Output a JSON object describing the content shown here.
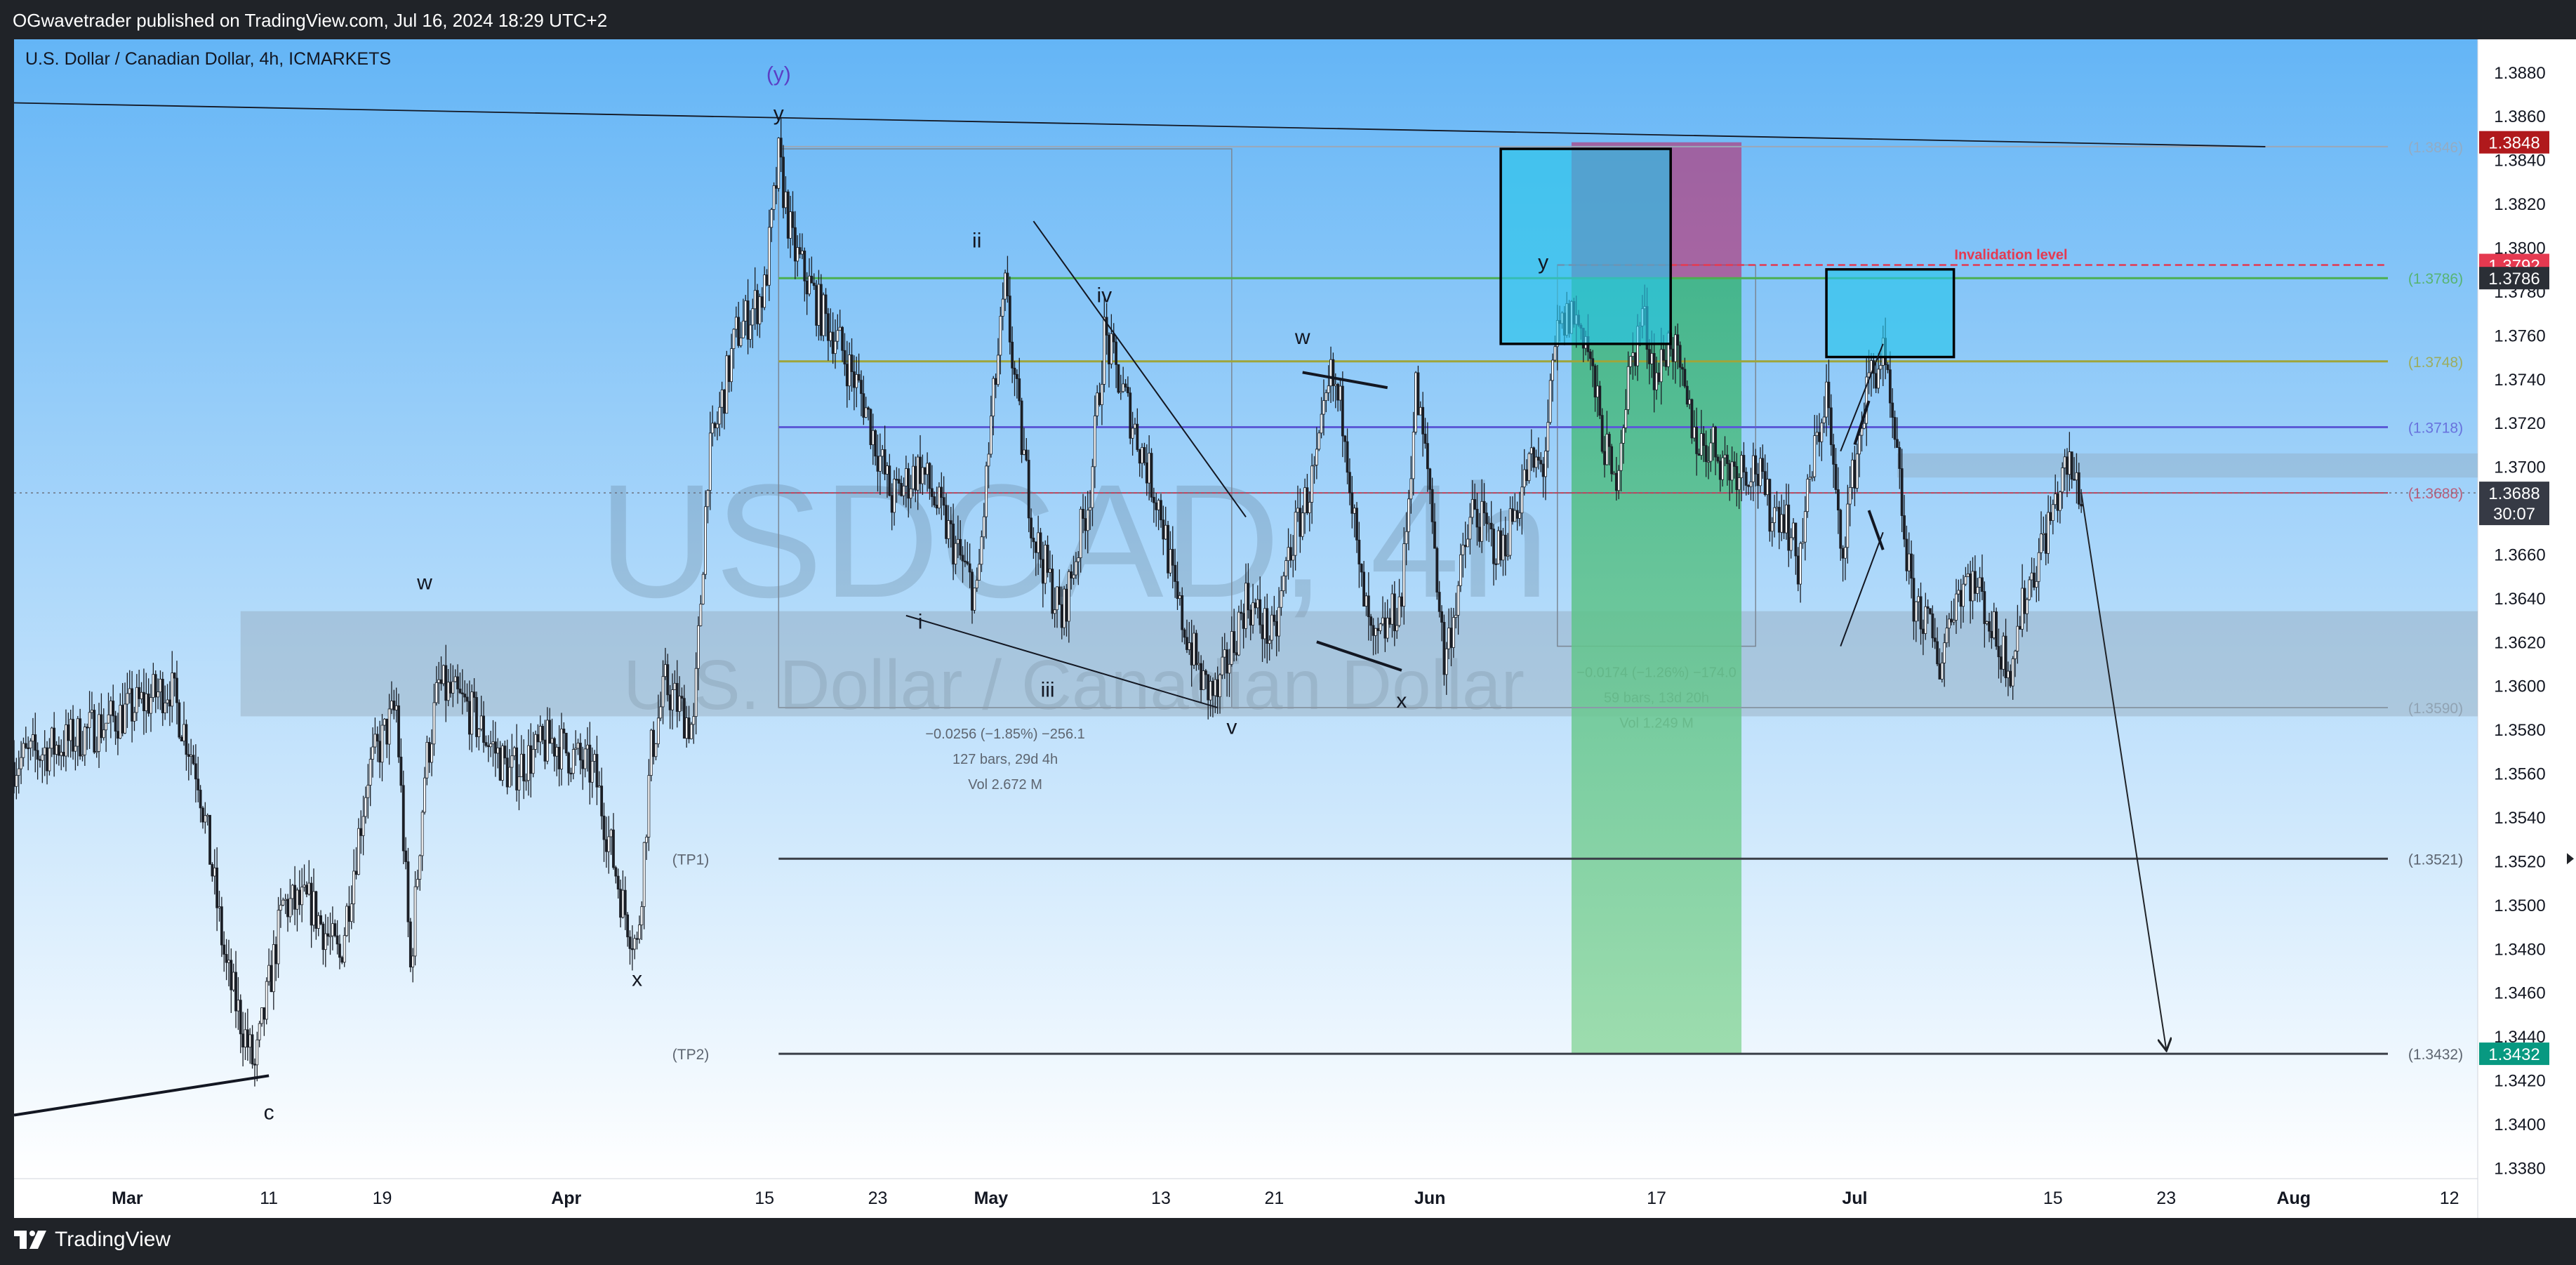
{
  "header": {
    "published_line": "OGwavetrader published on TradingView.com, Jul 16, 2024 18:29 UTC+2"
  },
  "footer": {
    "brand": "TradingView"
  },
  "chart_data": {
    "type": "candlestick",
    "symbol_title": "U.S. Dollar / Canadian Dollar, 4h, ICMARKETS",
    "watermark": {
      "ticker": "USDCAD, 4h",
      "name": "U.S. Dollar / Canadian Dollar"
    },
    "ylim": [
      1.3375,
      1.3895
    ],
    "y_ticks": [
      1.338,
      1.34,
      1.342,
      1.344,
      1.346,
      1.348,
      1.35,
      1.352,
      1.354,
      1.356,
      1.358,
      1.36,
      1.362,
      1.364,
      1.366,
      1.368,
      1.37,
      1.372,
      1.374,
      1.376,
      1.378,
      1.38,
      1.382,
      1.384,
      1.386,
      1.388
    ],
    "x_ticks": [
      {
        "label": "Mar",
        "date": "2024-03-01",
        "bold": true
      },
      {
        "label": "11",
        "date": "2024-03-11",
        "bold": false
      },
      {
        "label": "19",
        "date": "2024-03-19",
        "bold": false
      },
      {
        "label": "Apr",
        "date": "2024-04-01",
        "bold": true
      },
      {
        "label": "15",
        "date": "2024-04-15",
        "bold": false
      },
      {
        "label": "23",
        "date": "2024-04-23",
        "bold": false
      },
      {
        "label": "May",
        "date": "2024-05-01",
        "bold": true
      },
      {
        "label": "13",
        "date": "2024-05-13",
        "bold": false
      },
      {
        "label": "21",
        "date": "2024-05-21",
        "bold": false
      },
      {
        "label": "Jun",
        "date": "2024-06-01",
        "bold": true
      },
      {
        "label": "17",
        "date": "2024-06-17",
        "bold": false
      },
      {
        "label": "Jul",
        "date": "2024-07-01",
        "bold": true
      },
      {
        "label": "15",
        "date": "2024-07-15",
        "bold": false
      },
      {
        "label": "23",
        "date": "2024-07-23",
        "bold": false
      },
      {
        "label": "Aug",
        "date": "2024-08-01",
        "bold": true
      },
      {
        "label": "12",
        "date": "2024-08-12",
        "bold": false
      }
    ],
    "x_range": [
      "2024-02-22",
      "2024-08-14"
    ],
    "price_path": [
      {
        "date": "2024-02-22",
        "price": 1.3565
      },
      {
        "date": "2024-02-26",
        "price": 1.3575
      },
      {
        "date": "2024-03-01",
        "price": 1.3588
      },
      {
        "date": "2024-03-04",
        "price": 1.36
      },
      {
        "date": "2024-03-06",
        "price": 1.356
      },
      {
        "date": "2024-03-08",
        "price": 1.347
      },
      {
        "date": "2024-03-10",
        "price": 1.3425
      },
      {
        "date": "2024-03-12",
        "price": 1.35
      },
      {
        "date": "2024-03-14",
        "price": 1.35
      },
      {
        "date": "2024-03-16",
        "price": 1.3475
      },
      {
        "date": "2024-03-18",
        "price": 1.356
      },
      {
        "date": "2024-03-20",
        "price": 1.359
      },
      {
        "date": "2024-03-21",
        "price": 1.347
      },
      {
        "date": "2024-03-22",
        "price": 1.356
      },
      {
        "date": "2024-03-23",
        "price": 1.36
      },
      {
        "date": "2024-03-25",
        "price": 1.359
      },
      {
        "date": "2024-03-28",
        "price": 1.356
      },
      {
        "date": "2024-03-31",
        "price": 1.3575
      },
      {
        "date": "2024-04-03",
        "price": 1.356
      },
      {
        "date": "2024-04-05",
        "price": 1.35
      },
      {
        "date": "2024-04-06",
        "price": 1.348
      },
      {
        "date": "2024-04-07",
        "price": 1.357
      },
      {
        "date": "2024-04-08",
        "price": 1.36
      },
      {
        "date": "2024-04-10",
        "price": 1.358
      },
      {
        "date": "2024-04-11",
        "price": 1.37
      },
      {
        "date": "2024-04-13",
        "price": 1.376
      },
      {
        "date": "2024-04-15",
        "price": 1.378
      },
      {
        "date": "2024-04-16",
        "price": 1.384
      },
      {
        "date": "2024-04-17",
        "price": 1.38
      },
      {
        "date": "2024-04-19",
        "price": 1.377
      },
      {
        "date": "2024-04-20",
        "price": 1.376
      },
      {
        "date": "2024-04-22",
        "price": 1.373
      },
      {
        "date": "2024-04-24",
        "price": 1.3685
      },
      {
        "date": "2024-04-26",
        "price": 1.37
      },
      {
        "date": "2024-04-28",
        "price": 1.367
      },
      {
        "date": "2024-04-30",
        "price": 1.364
      },
      {
        "date": "2024-05-01",
        "price": 1.372
      },
      {
        "date": "2024-05-02",
        "price": 1.378
      },
      {
        "date": "2024-05-03",
        "price": 1.372
      },
      {
        "date": "2024-05-04",
        "price": 1.367
      },
      {
        "date": "2024-05-06",
        "price": 1.363
      },
      {
        "date": "2024-05-08",
        "price": 1.369
      },
      {
        "date": "2024-05-09",
        "price": 1.376
      },
      {
        "date": "2024-05-11",
        "price": 1.372
      },
      {
        "date": "2024-05-13",
        "price": 1.368
      },
      {
        "date": "2024-05-14",
        "price": 1.364
      },
      {
        "date": "2024-05-16",
        "price": 1.36
      },
      {
        "date": "2024-05-17",
        "price": 1.3595
      },
      {
        "date": "2024-05-19",
        "price": 1.364
      },
      {
        "date": "2024-05-21",
        "price": 1.362
      },
      {
        "date": "2024-05-22",
        "price": 1.366
      },
      {
        "date": "2024-05-24",
        "price": 1.37
      },
      {
        "date": "2024-05-25",
        "price": 1.374
      },
      {
        "date": "2024-05-26",
        "price": 1.372
      },
      {
        "date": "2024-05-27",
        "price": 1.365
      },
      {
        "date": "2024-05-28",
        "price": 1.3615
      },
      {
        "date": "2024-05-30",
        "price": 1.364
      },
      {
        "date": "2024-05-31",
        "price": 1.3735
      },
      {
        "date": "2024-06-01",
        "price": 1.369
      },
      {
        "date": "2024-06-02",
        "price": 1.361
      },
      {
        "date": "2024-06-04",
        "price": 1.368
      },
      {
        "date": "2024-06-06",
        "price": 1.366
      },
      {
        "date": "2024-06-08",
        "price": 1.37
      },
      {
        "date": "2024-06-09",
        "price": 1.37
      },
      {
        "date": "2024-06-10",
        "price": 1.376
      },
      {
        "date": "2024-06-11",
        "price": 1.377
      },
      {
        "date": "2024-06-12",
        "price": 1.376
      },
      {
        "date": "2024-06-13",
        "price": 1.372
      },
      {
        "date": "2024-06-14",
        "price": 1.369
      },
      {
        "date": "2024-06-15",
        "price": 1.374
      },
      {
        "date": "2024-06-16",
        "price": 1.377
      },
      {
        "date": "2024-06-17",
        "price": 1.374
      },
      {
        "date": "2024-06-18",
        "price": 1.376
      },
      {
        "date": "2024-06-19",
        "price": 1.373
      },
      {
        "date": "2024-06-20",
        "price": 1.371
      },
      {
        "date": "2024-06-21",
        "price": 1.371
      },
      {
        "date": "2024-06-22",
        "price": 1.37
      },
      {
        "date": "2024-06-24",
        "price": 1.37
      },
      {
        "date": "2024-06-25",
        "price": 1.368
      },
      {
        "date": "2024-06-26",
        "price": 1.368
      },
      {
        "date": "2024-06-27",
        "price": 1.3655
      },
      {
        "date": "2024-06-28",
        "price": 1.37
      },
      {
        "date": "2024-06-29",
        "price": 1.3735
      },
      {
        "date": "2024-06-30",
        "price": 1.366
      },
      {
        "date": "2024-07-01",
        "price": 1.37
      },
      {
        "date": "2024-07-02",
        "price": 1.374
      },
      {
        "date": "2024-07-03",
        "price": 1.375
      },
      {
        "date": "2024-07-04",
        "price": 1.37
      },
      {
        "date": "2024-07-05",
        "price": 1.364
      },
      {
        "date": "2024-07-06",
        "price": 1.363
      },
      {
        "date": "2024-07-07",
        "price": 1.361
      },
      {
        "date": "2024-07-08",
        "price": 1.364
      },
      {
        "date": "2024-07-09",
        "price": 1.365
      },
      {
        "date": "2024-07-10",
        "price": 1.364
      },
      {
        "date": "2024-07-11",
        "price": 1.362
      },
      {
        "date": "2024-07-12",
        "price": 1.361
      },
      {
        "date": "2024-07-13",
        "price": 1.364
      },
      {
        "date": "2024-07-14",
        "price": 1.366
      },
      {
        "date": "2024-07-15",
        "price": 1.368
      },
      {
        "date": "2024-07-16",
        "price": 1.37
      },
      {
        "date": "2024-07-17",
        "price": 1.3688
      }
    ],
    "horizontal_levels": [
      {
        "price": 1.3846,
        "label": "(1.3846)",
        "color": "#9aa8b8",
        "width": 2
      },
      {
        "price": 1.3786,
        "label": "(1.3786)",
        "color": "#4caf50",
        "width": 3
      },
      {
        "price": 1.3748,
        "label": "(1.3748)",
        "color": "#9fa53a",
        "width": 3
      },
      {
        "price": 1.3718,
        "label": "(1.3718)",
        "color": "#5b5bd6",
        "width": 3
      },
      {
        "price": 1.3688,
        "label": "(1.3688)",
        "color": "#c0405a",
        "width": 2
      },
      {
        "price": 1.359,
        "label": "(1.3590)",
        "color": "#8a9aa8",
        "width": 2
      }
    ],
    "targets": [
      {
        "name": "(TP1)",
        "price": 1.3521,
        "label": "(1.3521)"
      },
      {
        "name": "(TP2)",
        "price": 1.3432,
        "label": "(1.3432)"
      }
    ],
    "invalidation": {
      "price": 1.3792,
      "text": "Invalidation level",
      "color": "#e53950"
    },
    "price_badges": [
      {
        "price": 1.3848,
        "text": "1.3848",
        "bg": "#b0191c"
      },
      {
        "price": 1.3792,
        "text": "1.3792",
        "bg": "#e53950"
      },
      {
        "price": 1.3786,
        "text": "1.3786",
        "bg": "#2b2f36"
      },
      {
        "price": 1.3688,
        "text": "1.3688",
        "bg": "#363a45",
        "sub": "30:07"
      },
      {
        "price": 1.3432,
        "text": "1.3432",
        "bg": "#089981"
      }
    ],
    "measure_boxes": [
      {
        "from": "2024-04-16",
        "to": "2024-05-18",
        "top": 1.3845,
        "bottom": 1.359,
        "lines": [
          "−0.0256 (−1.85%) −256.1",
          "127 bars, 29d 4h",
          "Vol 2.672 M"
        ]
      },
      {
        "from": "2024-06-10",
        "to": "2024-06-24",
        "top": 1.3792,
        "bottom": 1.3618,
        "lines": [
          "−0.0174 (−1.26%) −174.0",
          "59 bars, 13d 20h",
          "Vol 1.249 M"
        ]
      }
    ],
    "position": {
      "from": "2024-06-11",
      "to": "2024-06-23",
      "entry": 1.3786,
      "stop": 1.3848,
      "target": 1.3432
    },
    "zones": [
      {
        "from": "2024-06-06",
        "to": "2024-06-18",
        "top": 1.3845,
        "bottom": 1.3756
      },
      {
        "from": "2024-06-29",
        "to": "2024-07-08",
        "top": 1.379,
        "bottom": 1.375
      }
    ],
    "support_band": {
      "from": "2024-03-09",
      "to": "2024-08-14",
      "top": 1.3634,
      "bottom": 1.3586
    },
    "wave_labels": [
      {
        "text": "(y)",
        "date": "2024-04-16",
        "price": 1.3876,
        "color": "#5b3fc4"
      },
      {
        "text": "y",
        "date": "2024-04-16",
        "price": 1.3858,
        "color": "#131722"
      },
      {
        "text": "ii",
        "date": "2024-04-30",
        "price": 1.38,
        "color": "#131722"
      },
      {
        "text": "iv",
        "date": "2024-05-09",
        "price": 1.3775,
        "color": "#131722"
      },
      {
        "text": "i",
        "date": "2024-04-26",
        "price": 1.3626,
        "color": "#131722"
      },
      {
        "text": "iii",
        "date": "2024-05-05",
        "price": 1.3595,
        "color": "#131722"
      },
      {
        "text": "v",
        "date": "2024-05-18",
        "price": 1.3578,
        "color": "#131722"
      },
      {
        "text": "w",
        "date": "2024-03-22",
        "price": 1.3644,
        "color": "#131722"
      },
      {
        "text": "x",
        "date": "2024-04-06",
        "price": 1.3463,
        "color": "#131722"
      },
      {
        "text": "c",
        "date": "2024-03-11",
        "price": 1.3402,
        "color": "#131722"
      },
      {
        "text": "w",
        "date": "2024-05-23",
        "price": 1.3756,
        "color": "#131722"
      },
      {
        "text": "x",
        "date": "2024-05-30",
        "price": 1.359,
        "color": "#131722"
      },
      {
        "text": "y",
        "date": "2024-06-09",
        "price": 1.379,
        "color": "#131722"
      }
    ]
  }
}
